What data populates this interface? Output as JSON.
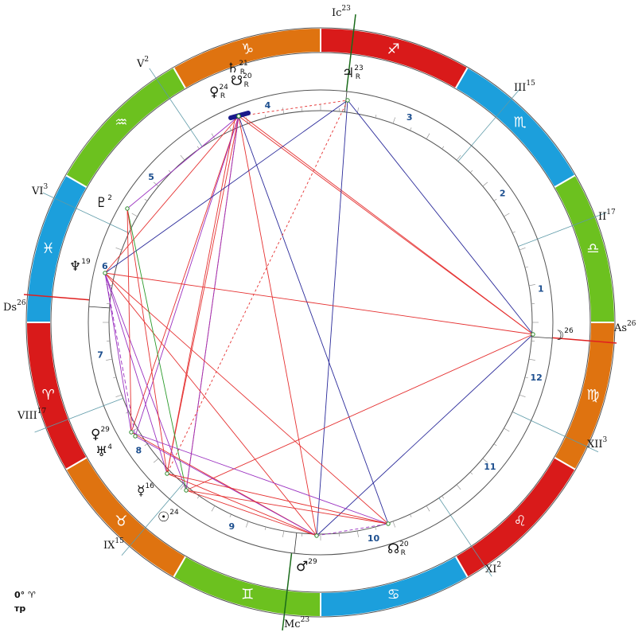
{
  "signs": [
    {
      "glyph": "♐",
      "color": "#d91a1a"
    },
    {
      "glyph": "♏",
      "color": "#1c9fdc"
    },
    {
      "glyph": "♎",
      "color": "#6cc11f"
    },
    {
      "glyph": "♍",
      "color": "#df7310"
    },
    {
      "glyph": "♌",
      "color": "#d91a1a"
    },
    {
      "glyph": "♋",
      "color": "#1c9fdc"
    },
    {
      "glyph": "♊",
      "color": "#6cc11f"
    },
    {
      "glyph": "♉",
      "color": "#df7310"
    },
    {
      "glyph": "♈",
      "color": "#d91a1a"
    },
    {
      "glyph": "♓",
      "color": "#1c9fdc"
    },
    {
      "glyph": "♒",
      "color": "#6cc11f"
    },
    {
      "glyph": "♑",
      "color": "#df7310"
    }
  ],
  "houses": [
    {
      "label": "As",
      "degree": 26
    },
    {
      "label": "II",
      "degree": 17
    },
    {
      "label": "III",
      "degree": 15
    },
    {
      "label": "Ic",
      "degree": 23
    },
    {
      "label": "V",
      "degree": 2
    },
    {
      "label": "VI",
      "degree": 3
    },
    {
      "label": "Ds",
      "degree": 26
    },
    {
      "label": "VIII",
      "degree": 17
    },
    {
      "label": "IX",
      "degree": 15
    },
    {
      "label": "Mc",
      "degree": 23
    },
    {
      "label": "XI",
      "degree": 2
    },
    {
      "label": "XII",
      "degree": 3
    }
  ],
  "house_numbers": [
    1,
    2,
    3,
    4,
    5,
    6,
    7,
    8,
    9,
    10,
    11,
    12
  ],
  "planets": [
    {
      "glyph": "♃",
      "degree": 23,
      "retro": "R"
    },
    {
      "glyph": "♄",
      "degree": 21,
      "retro": "R"
    },
    {
      "glyph": "☋",
      "degree": 20,
      "retro": "R"
    },
    {
      "glyph": "♀",
      "degree": 24,
      "retro": "R"
    },
    {
      "glyph": "♇",
      "degree": 2
    },
    {
      "glyph": "♆",
      "degree": 19
    },
    {
      "glyph": "♀",
      "degree": 29
    },
    {
      "glyph": "♅",
      "degree": 4
    },
    {
      "glyph": "☿",
      "degree": 16
    },
    {
      "glyph": "☉",
      "degree": 24
    },
    {
      "glyph": "♂",
      "degree": 29
    },
    {
      "glyph": "☊",
      "degree": 20,
      "retro": "R"
    },
    {
      "glyph": "☽",
      "degree": 26
    }
  ],
  "footer": {
    "line1": "0° ♈",
    "line2": "тр"
  }
}
